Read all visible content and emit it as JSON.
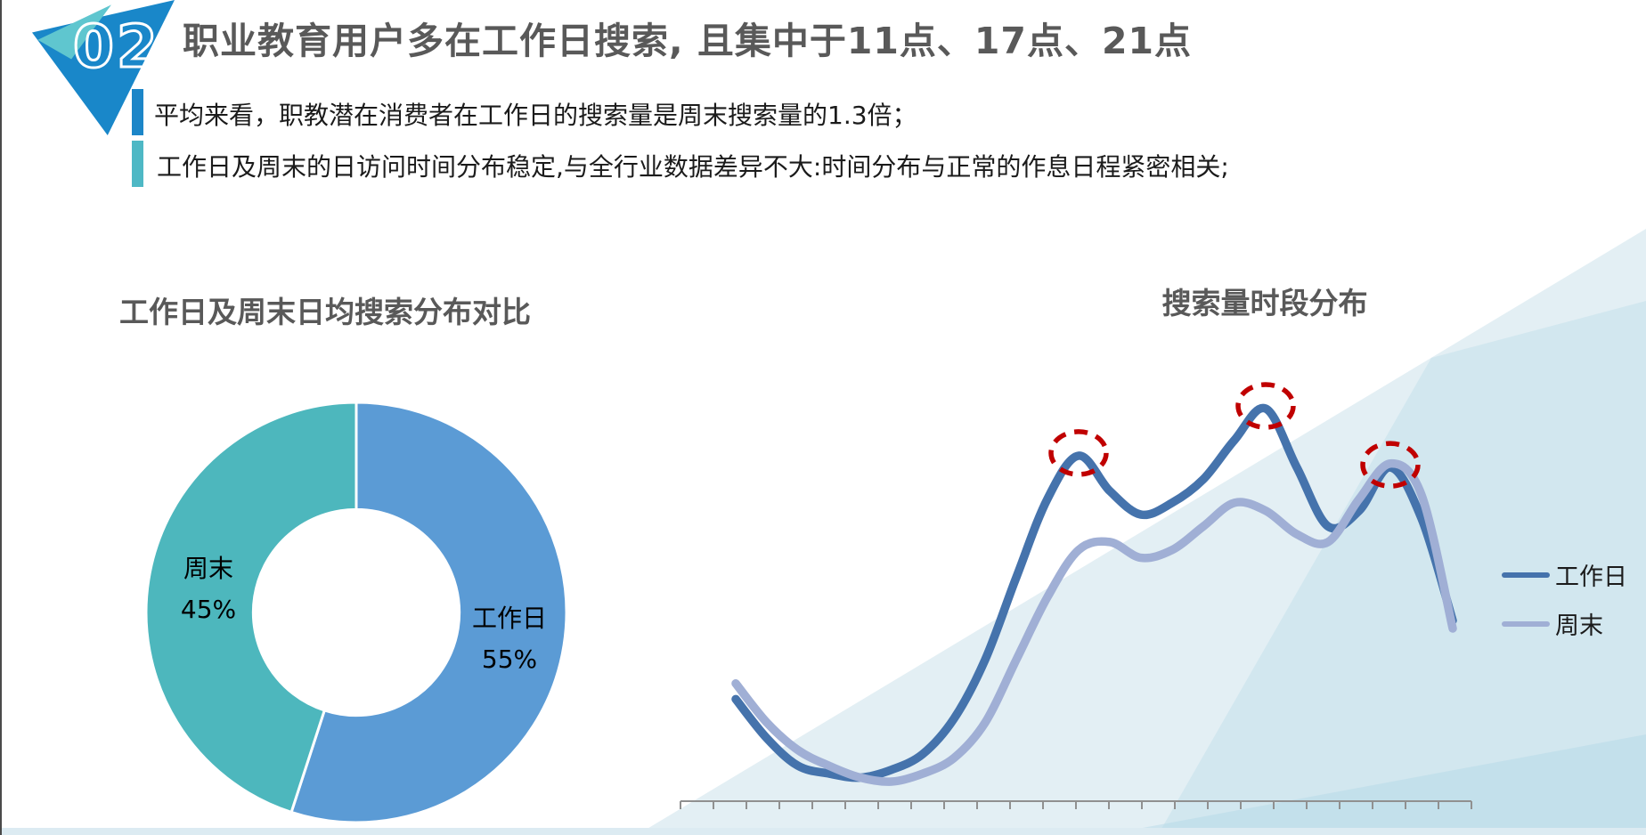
{
  "header": {
    "badge_number": "02",
    "badge_color": "#1987C9",
    "badge_accent_color": "#5FC6CF",
    "title": "职业教育用户多在工作日搜索, 且集中于11点、17点、21点",
    "title_color": "#595959"
  },
  "bullets": [
    {
      "bar_color": "#1C86C8",
      "text": "平均来看，职教潜在消费者在工作日的搜索量是周末搜索量的1.3倍；"
    },
    {
      "bar_color": "#4EB8C5",
      "text": "工作日及周末的日访问时间分布稳定,与全行业数据差异不大:时间分布与正常的作息日程紧密相关;"
    }
  ],
  "chart_data": [
    {
      "type": "pie",
      "title": "工作日及周末日均搜索分布对比",
      "donut": true,
      "inner_radius_ratio": 0.49,
      "start_angle": "top, clockwise",
      "slices": [
        {
          "label": "工作日",
          "value": 55,
          "display": "55%",
          "color": "#5B9BD5"
        },
        {
          "label": "周末",
          "value": 45,
          "display": "45%",
          "color": "#4DB7BD"
        }
      ]
    },
    {
      "type": "line",
      "title": "搜索量时段分布",
      "x_axis": {
        "description": "hour of day 0-24, unlabeled tick marks",
        "tick_count": 25,
        "hours_span": [
          0,
          24
        ]
      },
      "y_axis": {
        "description": "relative search volume, no visible scale",
        "range": [
          0,
          100
        ]
      },
      "grid": false,
      "legend_position": "right",
      "series": [
        {
          "name": "工作日",
          "color": "#4573AC",
          "values_by_hour": [
            26,
            16,
            9,
            7,
            6,
            8,
            12,
            21,
            36,
            57,
            77,
            88,
            79,
            73,
            76,
            82,
            92,
            100,
            85,
            70,
            74,
            85,
            72,
            46
          ]
        },
        {
          "name": "周末",
          "color": "#A0AFD5",
          "values_by_hour": [
            30,
            20,
            13,
            9,
            6,
            5,
            7,
            11,
            20,
            36,
            52,
            64,
            66,
            62,
            64,
            70,
            76,
            74,
            68,
            66,
            77,
            86,
            78,
            44
          ]
        }
      ],
      "annotations": {
        "style": "dashed-ellipse",
        "color": "#C00000",
        "peak_hours": [
          11,
          17,
          21
        ],
        "peak_labels": [
          "11点",
          "17点",
          "21点"
        ],
        "series": "工作日"
      }
    }
  ],
  "colors": {
    "background_triangle": "#E3EFF4",
    "axis": "#909090"
  }
}
